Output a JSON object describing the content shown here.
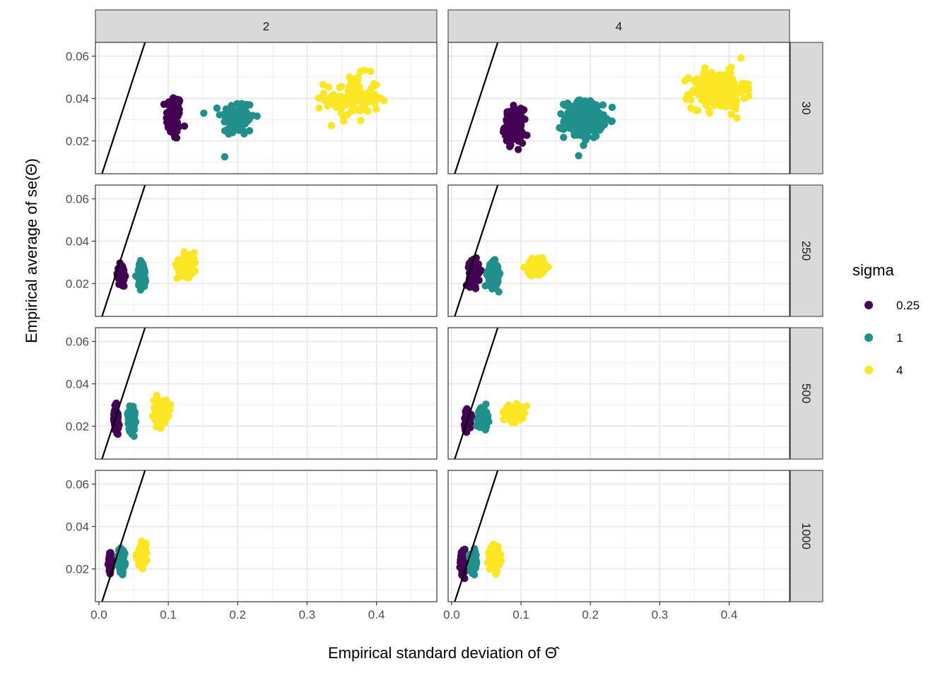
{
  "chart_data": {
    "type": "scatter",
    "facets": {
      "columns": [
        "2",
        "4"
      ],
      "rows": [
        "30",
        "250",
        "500",
        "1000"
      ]
    },
    "xlabel": "Empirical standard deviation of Θ̂",
    "ylabel": "Empirical average of se(Θ)",
    "xlim": [
      -0.005,
      0.487
    ],
    "ylim": [
      0.0045,
      0.0665
    ],
    "x_ticks": [
      "0.0",
      "0.1",
      "0.2",
      "0.3",
      "0.4"
    ],
    "x_tick_values": [
      0,
      0.1,
      0.2,
      0.3,
      0.4
    ],
    "y_ticks": [
      "0.02",
      "0.04",
      "0.06"
    ],
    "y_tick_values": [
      0.02,
      0.04,
      0.06
    ],
    "grid": true,
    "reference_line": {
      "type": "identity",
      "slope": 1,
      "intercept": 0
    },
    "legend": {
      "title": "sigma",
      "position": "right",
      "entries": [
        {
          "label": "0.25",
          "color": "#440154"
        },
        {
          "label": "1",
          "color": "#21908C"
        },
        {
          "label": "4",
          "color": "#FDE725"
        }
      ]
    },
    "panels": [
      {
        "col": "2",
        "row": "30",
        "series": [
          {
            "sigma": "0.25",
            "x_center": 0.108,
            "x_spread": 0.01,
            "y_center": 0.031,
            "y_spread": 0.01,
            "n": 90
          },
          {
            "sigma": "1",
            "x_center": 0.2,
            "x_spread": 0.022,
            "y_center": 0.031,
            "y_spread": 0.008,
            "n": 100
          },
          {
            "sigma": "4",
            "x_center": 0.365,
            "x_spread": 0.035,
            "y_center": 0.04,
            "y_spread": 0.01,
            "n": 110
          }
        ]
      },
      {
        "col": "4",
        "row": "30",
        "series": [
          {
            "sigma": "0.25",
            "x_center": 0.09,
            "x_spread": 0.012,
            "y_center": 0.027,
            "y_spread": 0.007,
            "n": 160
          },
          {
            "sigma": "1",
            "x_center": 0.19,
            "x_spread": 0.025,
            "y_center": 0.03,
            "y_spread": 0.008,
            "n": 220
          },
          {
            "sigma": "4",
            "x_center": 0.385,
            "x_spread": 0.035,
            "y_center": 0.044,
            "y_spread": 0.008,
            "n": 260
          }
        ]
      },
      {
        "col": "2",
        "row": "250",
        "series": [
          {
            "sigma": "0.25",
            "x_center": 0.033,
            "x_spread": 0.004,
            "y_center": 0.024,
            "y_spread": 0.005,
            "n": 80
          },
          {
            "sigma": "1",
            "x_center": 0.062,
            "x_spread": 0.006,
            "y_center": 0.024,
            "y_spread": 0.006,
            "n": 90
          },
          {
            "sigma": "4",
            "x_center": 0.127,
            "x_spread": 0.013,
            "y_center": 0.029,
            "y_spread": 0.005,
            "n": 110
          }
        ]
      },
      {
        "col": "4",
        "row": "250",
        "series": [
          {
            "sigma": "0.25",
            "x_center": 0.032,
            "x_spread": 0.006,
            "y_center": 0.025,
            "y_spread": 0.005,
            "n": 140
          },
          {
            "sigma": "1",
            "x_center": 0.06,
            "x_spread": 0.007,
            "y_center": 0.024,
            "y_spread": 0.005,
            "n": 160
          },
          {
            "sigma": "4",
            "x_center": 0.122,
            "x_spread": 0.011,
            "y_center": 0.028,
            "y_spread": 0.003,
            "n": 200
          }
        ]
      },
      {
        "col": "2",
        "row": "500",
        "series": [
          {
            "sigma": "0.25",
            "x_center": 0.025,
            "x_spread": 0.003,
            "y_center": 0.023,
            "y_spread": 0.005,
            "n": 80
          },
          {
            "sigma": "1",
            "x_center": 0.047,
            "x_spread": 0.005,
            "y_center": 0.024,
            "y_spread": 0.006,
            "n": 90
          },
          {
            "sigma": "4",
            "x_center": 0.089,
            "x_spread": 0.009,
            "y_center": 0.027,
            "y_spread": 0.005,
            "n": 110
          }
        ]
      },
      {
        "col": "4",
        "row": "500",
        "series": [
          {
            "sigma": "0.25",
            "x_center": 0.023,
            "x_spread": 0.004,
            "y_center": 0.023,
            "y_spread": 0.004,
            "n": 140
          },
          {
            "sigma": "1",
            "x_center": 0.045,
            "x_spread": 0.006,
            "y_center": 0.024,
            "y_spread": 0.004,
            "n": 160
          },
          {
            "sigma": "4",
            "x_center": 0.09,
            "x_spread": 0.009,
            "y_center": 0.026,
            "y_spread": 0.003,
            "n": 200
          }
        ]
      },
      {
        "col": "2",
        "row": "1000",
        "series": [
          {
            "sigma": "0.25",
            "x_center": 0.016,
            "x_spread": 0.002,
            "y_center": 0.023,
            "y_spread": 0.004,
            "n": 80
          },
          {
            "sigma": "1",
            "x_center": 0.033,
            "x_spread": 0.004,
            "y_center": 0.024,
            "y_spread": 0.005,
            "n": 90
          },
          {
            "sigma": "4",
            "x_center": 0.061,
            "x_spread": 0.006,
            "y_center": 0.026,
            "y_spread": 0.005,
            "n": 110
          }
        ]
      },
      {
        "col": "4",
        "row": "1000",
        "series": [
          {
            "sigma": "0.25",
            "x_center": 0.016,
            "x_spread": 0.003,
            "y_center": 0.023,
            "y_spread": 0.004,
            "n": 140
          },
          {
            "sigma": "1",
            "x_center": 0.032,
            "x_spread": 0.004,
            "y_center": 0.023,
            "y_spread": 0.004,
            "n": 160
          },
          {
            "sigma": "4",
            "x_center": 0.063,
            "x_spread": 0.006,
            "y_center": 0.025,
            "y_spread": 0.004,
            "n": 200
          }
        ]
      }
    ]
  }
}
